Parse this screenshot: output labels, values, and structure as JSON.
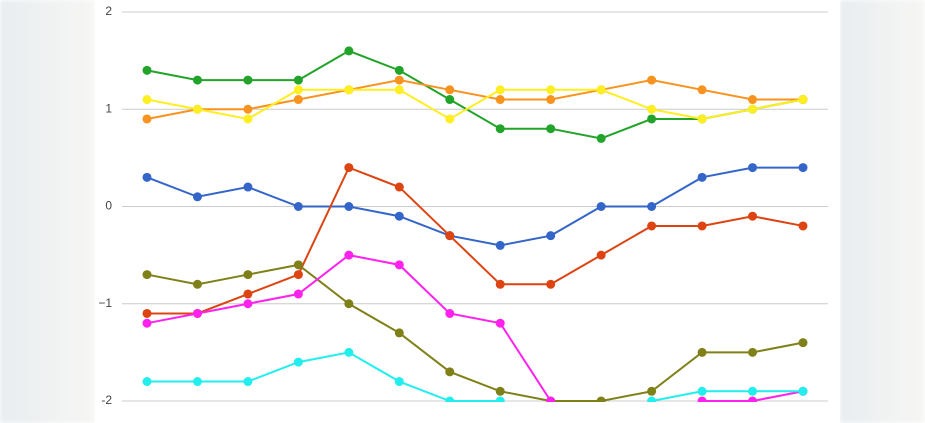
{
  "chart_data": {
    "type": "line",
    "categories": [
      null,
      null,
      null,
      null,
      null,
      null,
      null,
      null,
      null,
      null,
      null,
      null,
      null,
      null
    ],
    "ylim": [
      -2,
      2
    ],
    "yticks": [
      -2,
      {
        "value": -1,
        "label": "−1"
      },
      0,
      1,
      2
    ],
    "grid": true,
    "series": [
      {
        "name": null,
        "color": "#22a32a",
        "values": [
          1.4,
          1.3,
          1.3,
          1.3,
          1.6,
          1.4,
          1.1,
          0.8,
          0.8,
          0.7,
          0.9,
          0.9,
          1.0,
          1.1
        ]
      },
      {
        "name": null,
        "color": "#f7931e",
        "values": [
          0.9,
          1.0,
          1.0,
          1.1,
          1.2,
          1.3,
          1.2,
          1.1,
          1.1,
          1.2,
          1.3,
          1.2,
          1.1,
          1.1
        ]
      },
      {
        "name": null,
        "color": "#ffee22",
        "values": [
          1.1,
          1.0,
          0.9,
          1.2,
          1.2,
          1.2,
          0.9,
          1.2,
          1.2,
          1.2,
          1.0,
          0.9,
          1.0,
          1.1
        ]
      },
      {
        "name": null,
        "color": "#3465c8",
        "values": [
          0.3,
          0.1,
          0.2,
          0.0,
          0.0,
          -0.1,
          -0.3,
          -0.4,
          -0.3,
          0.0,
          0.0,
          0.3,
          0.4,
          0.4
        ]
      },
      {
        "name": null,
        "color": "#dd4411",
        "values": [
          -1.1,
          -1.1,
          -0.9,
          -0.7,
          0.4,
          0.2,
          -0.3,
          -0.8,
          -0.8,
          -0.5,
          -0.2,
          -0.2,
          -0.1,
          -0.2
        ]
      },
      {
        "name": null,
        "color": "#808019",
        "values": [
          -0.7,
          -0.8,
          -0.7,
          -0.6,
          -1.0,
          -1.3,
          -1.7,
          -1.9,
          -2.0,
          -2.0,
          -1.9,
          -1.5,
          -1.5,
          -1.4
        ]
      },
      {
        "name": null,
        "color": "#ff22ee",
        "values": [
          -1.2,
          -1.1,
          -1.0,
          -0.9,
          -0.5,
          -0.6,
          -1.1,
          -1.2,
          -2.0,
          null,
          null,
          -2.0,
          -2.0,
          -1.9
        ]
      },
      {
        "name": null,
        "color": "#22eeee",
        "values": [
          -1.8,
          -1.8,
          -1.8,
          -1.6,
          -1.5,
          -1.8,
          -2.0,
          -2.0,
          null,
          null,
          -2.0,
          -1.9,
          -1.9,
          -1.9
        ]
      }
    ]
  }
}
